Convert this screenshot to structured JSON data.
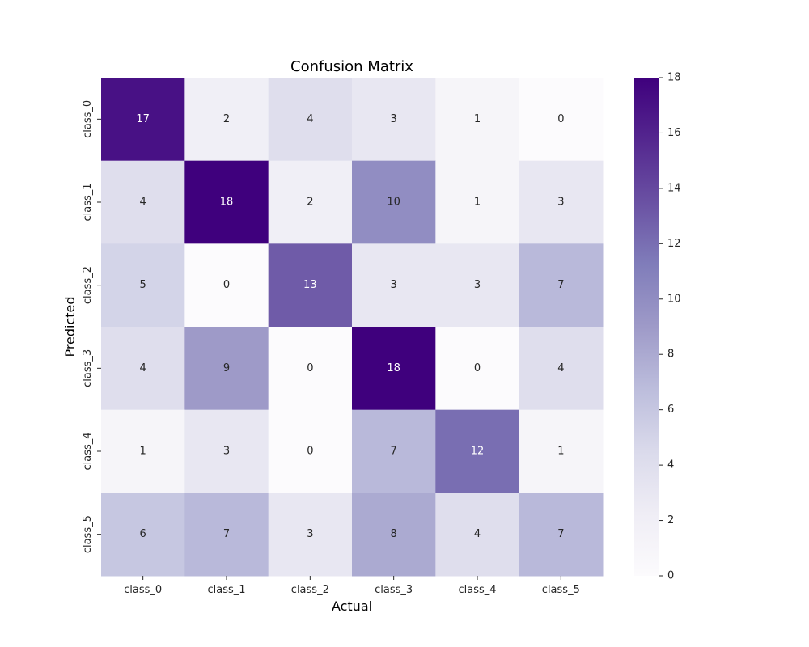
{
  "chart_data": {
    "type": "heatmap",
    "title": "Confusion Matrix",
    "xlabel": "Actual",
    "ylabel": "Predicted",
    "x_categories": [
      "class_0",
      "class_1",
      "class_2",
      "class_3",
      "class_4",
      "class_5"
    ],
    "y_categories": [
      "class_0",
      "class_1",
      "class_2",
      "class_3",
      "class_4",
      "class_5"
    ],
    "values": [
      [
        17,
        2,
        4,
        3,
        1,
        0
      ],
      [
        4,
        18,
        2,
        10,
        1,
        3
      ],
      [
        5,
        0,
        13,
        3,
        3,
        7
      ],
      [
        4,
        9,
        0,
        18,
        0,
        4
      ],
      [
        1,
        3,
        0,
        7,
        12,
        1
      ],
      [
        6,
        7,
        3,
        8,
        4,
        7
      ]
    ],
    "colormap": "Purples",
    "value_range": [
      0,
      18
    ],
    "colorbar_ticks": [
      0,
      2,
      4,
      6,
      8,
      10,
      12,
      14,
      16,
      18
    ],
    "annotations": true,
    "grid": false
  }
}
